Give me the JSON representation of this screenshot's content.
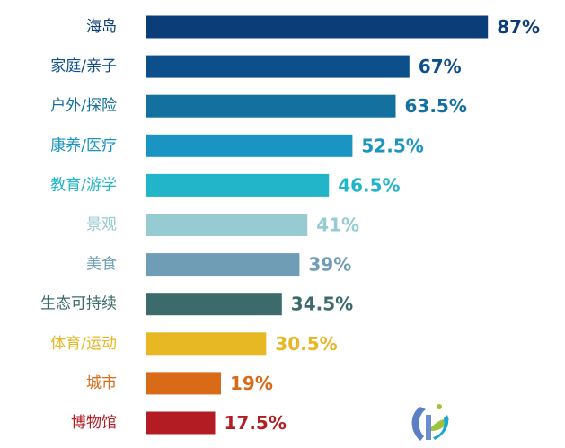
{
  "chart_data": {
    "type": "bar",
    "orientation": "horizontal",
    "title": "",
    "xlabel": "",
    "ylabel": "",
    "xlim": [
      0,
      100
    ],
    "grid": false,
    "legend": "none",
    "categories": [
      "海岛",
      "家庭/亲子",
      "户外/探险",
      "康养/医疗",
      "教育/游学",
      "景观",
      "美食",
      "生态可持续",
      "体育/运动",
      "城市",
      "博物馆"
    ],
    "values": [
      87,
      67,
      63.5,
      52.5,
      46.5,
      41,
      39,
      34.5,
      30.5,
      19,
      17.5
    ],
    "value_labels": [
      "87%",
      "67%",
      "63.5%",
      "52.5%",
      "46.5%",
      "41%",
      "39%",
      "34.5%",
      "30.5%",
      "19%",
      "17.5%"
    ],
    "colors": [
      "#0b3d78",
      "#0d4f8b",
      "#13709f",
      "#1a94c2",
      "#22b4c8",
      "#95cbd1",
      "#6f9db6",
      "#3d6b6b",
      "#e8b724",
      "#d96a18",
      "#b41c23"
    ]
  },
  "logo": {
    "icon": "brand-logo-icon",
    "colors": [
      "#5b7fc4",
      "#9bc43c",
      "#1ba7d6"
    ]
  }
}
